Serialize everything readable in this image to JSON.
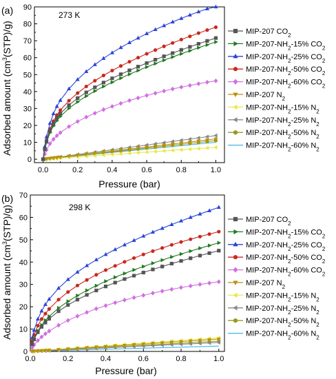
{
  "chart_data": [
    {
      "type": "line",
      "panel_label": "(a)",
      "annotation": "273 K",
      "xlabel": "Pressure (bar)",
      "ylabel": "Adsorbed amount (cm³(STP)/g)",
      "xlim": [
        -0.05,
        1.05
      ],
      "ylim": [
        -2,
        90
      ],
      "xticks": [
        0.0,
        0.2,
        0.4,
        0.6,
        0.8,
        1.0
      ],
      "xtick_labels": [
        "0.0",
        "0.2",
        "0.4",
        "0.6",
        "0.8",
        "1.0"
      ],
      "yticks": [
        0,
        10,
        20,
        30,
        40,
        50,
        60,
        70,
        80,
        90
      ],
      "ytick_labels": [
        "0",
        "10",
        "20",
        "30",
        "40",
        "50",
        "60",
        "70",
        "80",
        "90"
      ],
      "grid": false,
      "legend_position": "right",
      "x": [
        0.0,
        0.01,
        0.02,
        0.04,
        0.06,
        0.08,
        0.1,
        0.15,
        0.2,
        0.25,
        0.3,
        0.35,
        0.4,
        0.45,
        0.5,
        0.55,
        0.6,
        0.65,
        0.7,
        0.75,
        0.8,
        0.85,
        0.9,
        0.95,
        1.0
      ],
      "series": [
        {
          "name": "MIP-207 CO₂",
          "color": "#555555",
          "marker": "square",
          "values": [
            0.0,
            6.0,
            10.5,
            16.8,
            21.1,
            24.4,
            27.0,
            32.0,
            36.1,
            39.5,
            42.5,
            45.3,
            47.8,
            50.2,
            52.5,
            54.7,
            56.8,
            58.8,
            60.8,
            62.7,
            64.6,
            66.4,
            68.2,
            69.9,
            71.6
          ]
        },
        {
          "name": "MIP-207-NH₂-15% CO₂",
          "color": "#1f7a1f",
          "marker": "triangle-right",
          "values": [
            0.0,
            5.5,
            9.8,
            15.7,
            19.7,
            22.8,
            25.3,
            30.1,
            33.9,
            37.3,
            40.3,
            43.0,
            45.5,
            47.9,
            50.2,
            52.4,
            54.5,
            56.5,
            58.5,
            60.4,
            62.3,
            64.1,
            65.9,
            67.6,
            69.3
          ]
        },
        {
          "name": "MIP-207-NH₂-25% CO₂",
          "color": "#2a45d6",
          "marker": "triangle-up",
          "values": [
            0.0,
            7.5,
            13.2,
            21.2,
            26.9,
            31.2,
            34.8,
            41.6,
            47.1,
            51.8,
            55.9,
            59.6,
            62.9,
            66.0,
            68.9,
            71.6,
            74.2,
            76.6,
            78.9,
            81.1,
            83.2,
            85.2,
            87.1,
            88.9,
            90.0
          ]
        },
        {
          "name": "MIP-207-NH₂-50% CO₂",
          "color": "#c8281e",
          "marker": "circle",
          "values": [
            0.0,
            6.5,
            11.2,
            17.9,
            22.5,
            26.1,
            29.0,
            34.6,
            39.1,
            43.0,
            46.4,
            49.5,
            52.4,
            55.1,
            57.6,
            60.0,
            62.3,
            64.5,
            66.7,
            68.7,
            70.7,
            72.6,
            74.5,
            76.3,
            78.0
          ]
        },
        {
          "name": "MIP-207-NH₂-60% CO₂",
          "color": "#d070e0",
          "marker": "diamond",
          "values": [
            0.0,
            3.0,
            5.5,
            9.2,
            11.8,
            13.9,
            15.7,
            19.3,
            22.3,
            24.9,
            27.2,
            29.3,
            31.2,
            33.0,
            34.7,
            36.2,
            37.7,
            39.0,
            40.3,
            41.5,
            42.6,
            43.6,
            44.6,
            45.5,
            46.3
          ]
        },
        {
          "name": "MIP-207 N₂",
          "color": "#b8920a",
          "marker": "triangle-down",
          "values": [
            0.0,
            0.12,
            0.24,
            0.48,
            0.72,
            0.96,
            1.2,
            1.8,
            2.4,
            3.0,
            3.6,
            4.2,
            4.8,
            5.4,
            6.0,
            6.6,
            7.2,
            7.8,
            8.4,
            9.0,
            9.6,
            10.2,
            10.8,
            11.4,
            12.0
          ]
        },
        {
          "name": "MIP-207-NH₂-15% N₂",
          "color": "#e8e84a",
          "marker": "triangle-left",
          "values": [
            0.0,
            0.07,
            0.14,
            0.28,
            0.42,
            0.56,
            0.7,
            1.05,
            1.4,
            1.75,
            2.1,
            2.45,
            2.8,
            3.15,
            3.5,
            3.85,
            4.2,
            4.55,
            4.9,
            5.25,
            5.6,
            5.95,
            6.3,
            6.65,
            7.0
          ]
        },
        {
          "name": "MIP-207-NH₂-25% N₂",
          "color": "#888888",
          "marker": "triangle-left",
          "values": [
            0.0,
            0.14,
            0.28,
            0.56,
            0.84,
            1.12,
            1.4,
            2.1,
            2.8,
            3.5,
            4.2,
            4.9,
            5.6,
            6.3,
            7.0,
            7.7,
            8.4,
            9.1,
            9.8,
            10.5,
            11.2,
            11.9,
            12.6,
            13.3,
            14.0
          ]
        },
        {
          "name": "MIP-207-NH₂-50% N₂",
          "color": "#9a9a1e",
          "marker": "hexagon",
          "values": [
            0.0,
            0.11,
            0.22,
            0.44,
            0.66,
            0.88,
            1.1,
            1.65,
            2.2,
            2.75,
            3.3,
            3.85,
            4.4,
            4.95,
            5.5,
            6.05,
            6.6,
            7.15,
            7.7,
            8.25,
            8.8,
            9.35,
            9.9,
            10.45,
            11.0
          ]
        },
        {
          "name": "MIP-207-NH₂-60% N₂",
          "color": "#3fb6e8",
          "marker": "none",
          "values": [
            0.0,
            0.1,
            0.2,
            0.4,
            0.6,
            0.8,
            1.0,
            1.5,
            2.0,
            2.5,
            3.0,
            3.5,
            4.0,
            4.5,
            5.0,
            5.5,
            6.0,
            6.5,
            7.0,
            7.5,
            8.0,
            8.5,
            9.0,
            9.5,
            10.0
          ]
        }
      ]
    },
    {
      "type": "line",
      "panel_label": "(b)",
      "annotation": "298 K",
      "xlabel": "Pressure (bar)",
      "ylabel": "Adsorbed amount (cm³(STP)/g)",
      "xlim": [
        0.0,
        1.03
      ],
      "ylim": [
        0,
        70
      ],
      "xticks": [
        0.0,
        0.2,
        0.4,
        0.6,
        0.8,
        1.0
      ],
      "xtick_labels": [
        "0.0",
        "0.2",
        "0.4",
        "0.6",
        "0.8",
        "1.0"
      ],
      "yticks": [
        0,
        10,
        20,
        30,
        40,
        50,
        60,
        70
      ],
      "ytick_labels": [
        "0",
        "10",
        "20",
        "30",
        "40",
        "50",
        "60",
        "70"
      ],
      "grid": false,
      "legend_position": "right",
      "x": [
        0.01,
        0.02,
        0.04,
        0.06,
        0.08,
        0.1,
        0.15,
        0.2,
        0.25,
        0.3,
        0.35,
        0.4,
        0.45,
        0.5,
        0.55,
        0.6,
        0.65,
        0.7,
        0.75,
        0.8,
        0.85,
        0.9,
        0.95,
        1.0
      ],
      "series": [
        {
          "name": "MIP-207 CO₂",
          "color": "#555555",
          "marker": "square",
          "values": [
            3.2,
            5.4,
            8.6,
            11.0,
            12.9,
            14.6,
            18.0,
            20.8,
            23.2,
            25.3,
            27.3,
            29.1,
            30.8,
            32.4,
            33.9,
            35.3,
            36.7,
            38.0,
            39.3,
            40.5,
            41.7,
            42.9,
            44.0,
            45.1
          ]
        },
        {
          "name": "MIP-207-NH₂-15% CO₂",
          "color": "#1f7a1f",
          "marker": "triangle-right",
          "values": [
            3.4,
            5.8,
            9.2,
            11.8,
            13.9,
            15.7,
            19.4,
            22.4,
            25.0,
            27.3,
            29.4,
            31.4,
            33.2,
            34.9,
            36.5,
            38.0,
            39.5,
            40.9,
            42.3,
            43.6,
            44.9,
            46.2,
            47.4,
            48.6
          ]
        },
        {
          "name": "MIP-207-NH₂-25% CO₂",
          "color": "#2a45d6",
          "marker": "triangle-up",
          "values": [
            6.0,
            9.5,
            14.5,
            18.1,
            21.0,
            23.4,
            28.3,
            32.2,
            35.5,
            38.4,
            41.0,
            43.4,
            45.6,
            47.7,
            49.7,
            51.6,
            53.4,
            55.1,
            56.8,
            58.4,
            60.0,
            61.5,
            63.0,
            64.5
          ]
        },
        {
          "name": "MIP-207-NH₂-50% CO₂",
          "color": "#c8281e",
          "marker": "circle",
          "values": [
            4.5,
            7.4,
            11.5,
            14.5,
            16.9,
            19.0,
            23.2,
            26.6,
            29.5,
            32.0,
            34.3,
            36.4,
            38.3,
            40.1,
            41.8,
            43.4,
            44.9,
            46.3,
            47.7,
            49.0,
            50.2,
            51.4,
            52.5,
            53.6
          ]
        },
        {
          "name": "MIP-207-NH₂-60% CO₂",
          "color": "#d070e0",
          "marker": "diamond",
          "values": [
            1.6,
            2.9,
            4.9,
            6.5,
            7.9,
            9.1,
            11.7,
            13.9,
            15.8,
            17.5,
            19.1,
            20.5,
            21.8,
            23.0,
            24.1,
            25.1,
            26.1,
            27.0,
            27.8,
            28.6,
            29.3,
            30.0,
            30.6,
            31.2
          ]
        },
        {
          "name": "MIP-207 N₂",
          "color": "#b8920a",
          "marker": "triangle-down",
          "values": [
            0.1,
            0.15,
            0.25,
            0.35,
            0.45,
            0.55,
            0.85,
            1.1,
            1.4,
            1.65,
            1.95,
            2.2,
            2.5,
            2.75,
            3.05,
            3.3,
            3.6,
            3.85,
            4.15,
            4.4,
            4.7,
            4.95,
            5.25,
            5.5
          ]
        },
        {
          "name": "MIP-207-NH₂-15% N₂",
          "color": "#e8e84a",
          "marker": "triangle-left",
          "values": [
            0.1,
            0.18,
            0.3,
            0.42,
            0.54,
            0.66,
            0.98,
            1.3,
            1.6,
            1.9,
            2.2,
            2.5,
            2.8,
            3.1,
            3.4,
            3.7,
            4.0,
            4.3,
            4.6,
            4.9,
            5.2,
            5.5,
            5.8,
            6.1
          ]
        },
        {
          "name": "MIP-207-NH₂-25% N₂",
          "color": "#888888",
          "marker": "triangle-left",
          "values": [
            0.06,
            0.1,
            0.18,
            0.25,
            0.32,
            0.4,
            0.6,
            0.8,
            1.0,
            1.2,
            1.4,
            1.6,
            1.8,
            2.0,
            2.2,
            2.4,
            2.6,
            2.8,
            3.0,
            3.2,
            3.4,
            3.6,
            3.8,
            4.0
          ]
        },
        {
          "name": "MIP-207-NH₂-50% N₂",
          "color": "#9a9a1e",
          "marker": "hexagon",
          "values": [
            0.08,
            0.13,
            0.22,
            0.3,
            0.38,
            0.47,
            0.7,
            0.93,
            1.16,
            1.39,
            1.62,
            1.85,
            2.08,
            2.31,
            2.54,
            2.77,
            3.0,
            3.23,
            3.46,
            3.69,
            3.92,
            4.15,
            4.38,
            4.6
          ]
        },
        {
          "name": "MIP-207-NH₂-60% N₂",
          "color": "#3fb6e8",
          "marker": "none",
          "values": [
            0.05,
            0.07,
            0.12,
            0.17,
            0.22,
            0.27,
            0.38,
            0.5,
            0.62,
            0.73,
            0.85,
            0.97,
            1.08,
            1.2,
            1.32,
            1.43,
            1.55,
            1.67,
            1.78,
            1.9,
            2.02,
            2.13,
            2.25,
            2.4
          ]
        }
      ]
    }
  ]
}
